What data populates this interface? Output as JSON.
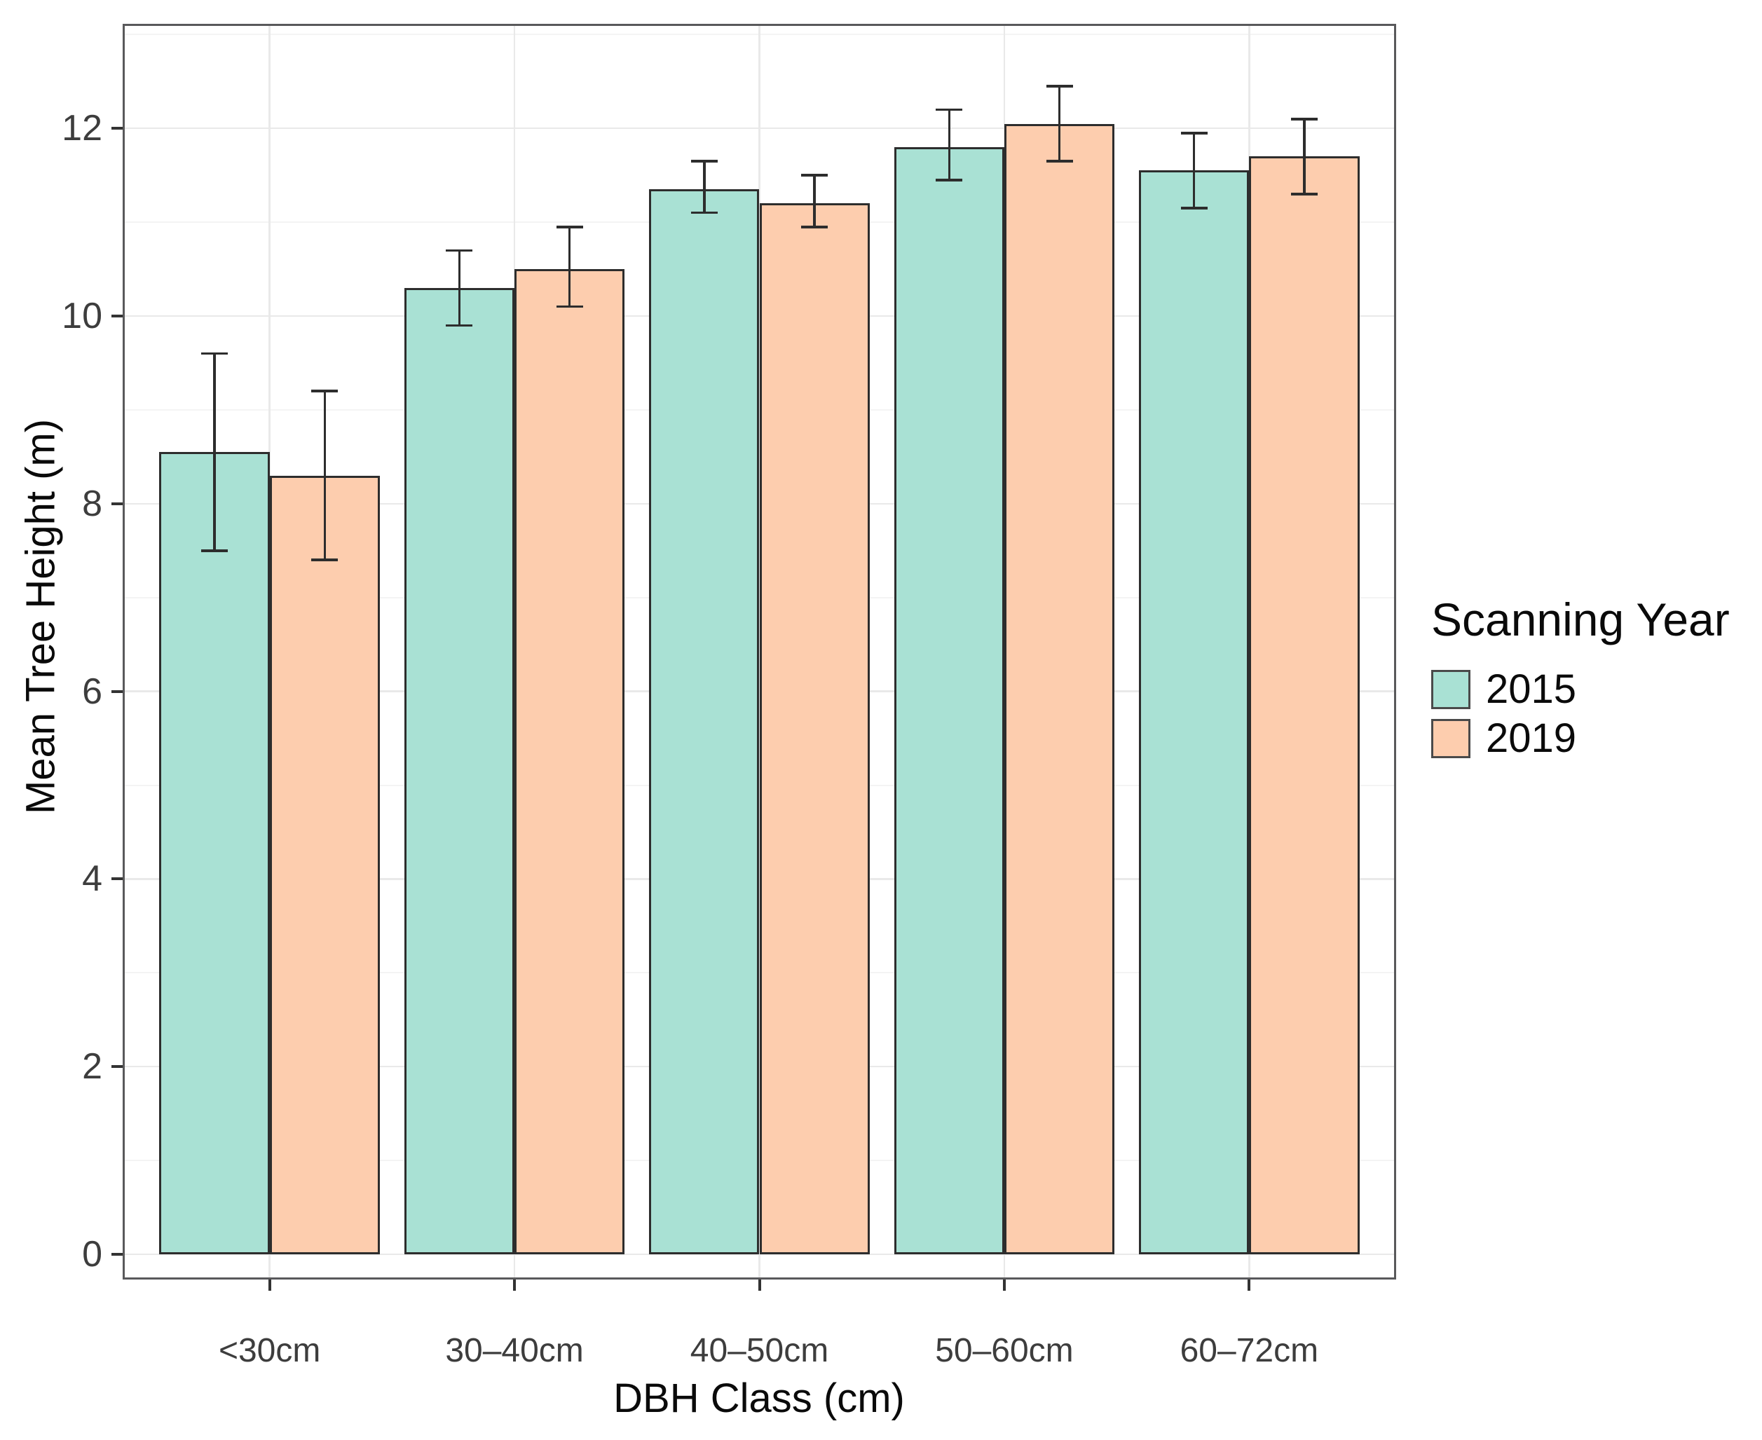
{
  "chart_data": {
    "type": "bar",
    "title": "",
    "xlabel": "DBH Class (cm)",
    "ylabel": "Mean Tree Height (m)",
    "legend_title": "Scanning Year",
    "legend_position": "right",
    "bar_mode": "dodge",
    "error_bars": true,
    "categories": [
      "<30cm",
      "30–40cm",
      "40–50cm",
      "50–60cm",
      "60–72cm"
    ],
    "series": [
      {
        "name": "2015",
        "color": "#A9E1D4",
        "border": "#2D2D2D",
        "values": [
          8.55,
          10.3,
          11.35,
          11.8,
          11.55
        ],
        "error_low": [
          7.5,
          9.9,
          11.1,
          11.45,
          11.15
        ],
        "error_high": [
          9.6,
          10.7,
          11.65,
          12.2,
          11.95
        ]
      },
      {
        "name": "2019",
        "color": "#FDCDAE",
        "border": "#2D2D2D",
        "values": [
          8.3,
          10.5,
          11.2,
          12.05,
          11.7
        ],
        "error_low": [
          7.4,
          10.1,
          10.95,
          11.65,
          11.3
        ],
        "error_high": [
          9.2,
          10.95,
          11.5,
          12.45,
          12.1
        ]
      }
    ],
    "y_ticks": [
      0,
      2,
      4,
      6,
      8,
      10,
      12
    ],
    "y_minor": [
      1,
      3,
      5,
      7,
      9,
      11,
      13
    ],
    "ylim": [
      0,
      13.1
    ],
    "grid": {
      "horizontal": "major+minor",
      "vertical": "category-centers"
    },
    "colors": {
      "grid_major": "#E9E9E9",
      "grid_minor": "#F4F4F4",
      "panel_border": "#59595B",
      "tick": "#333333",
      "tick_label": "#3D3D3D",
      "axis_title": "#0A0A0A",
      "errorbar": "#2D2D2D"
    }
  }
}
